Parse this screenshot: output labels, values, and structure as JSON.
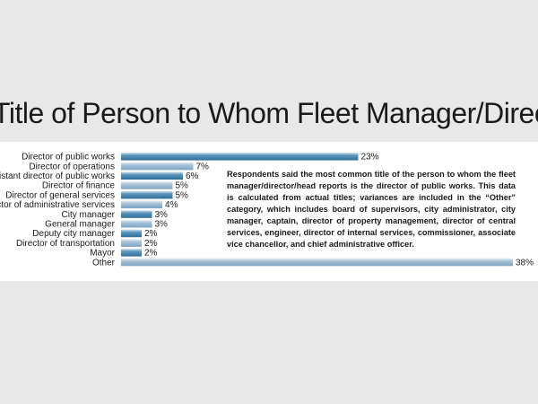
{
  "chart_data": {
    "type": "bar",
    "orientation": "horizontal",
    "title": "Title of Person to Whom Fleet Manager/Director Reports",
    "categories": [
      "Director of public works",
      "Director of operations",
      "Assistant director of public works",
      "Director of finance",
      "Director of general services",
      "Director of administrative services",
      "City manager",
      "General manager",
      "Deputy city manager",
      "Director of transportation",
      "Mayor",
      "Other"
    ],
    "values": [
      23,
      7,
      6,
      5,
      5,
      4,
      3,
      3,
      2,
      2,
      2,
      38
    ],
    "value_labels": [
      "23%",
      "7%",
      "6%",
      "5%",
      "5%",
      "4%",
      "3%",
      "3%",
      "2%",
      "2%",
      "2%",
      "38%"
    ],
    "xlim": [
      0,
      38
    ],
    "grid": false,
    "annotation": "Respondents said the most common title of the person to whom the fleet manager/director/head reports is the director of public works. This data is calculated from actual titles; variances are included in the “Other” category, which includes board of supervisors, city administrator, city manager, captain, director of property management, director of central services, engineer, director of internal services, commissioner, associate vice chancellor, and chief administrative officer.",
    "colors": {
      "bar_dark": "#3d7ea6",
      "bar_light": "#8fb3cf",
      "bar_highlight": "#d6e6f1",
      "panel": "#ffffff",
      "background": "#e8e8e8"
    }
  }
}
